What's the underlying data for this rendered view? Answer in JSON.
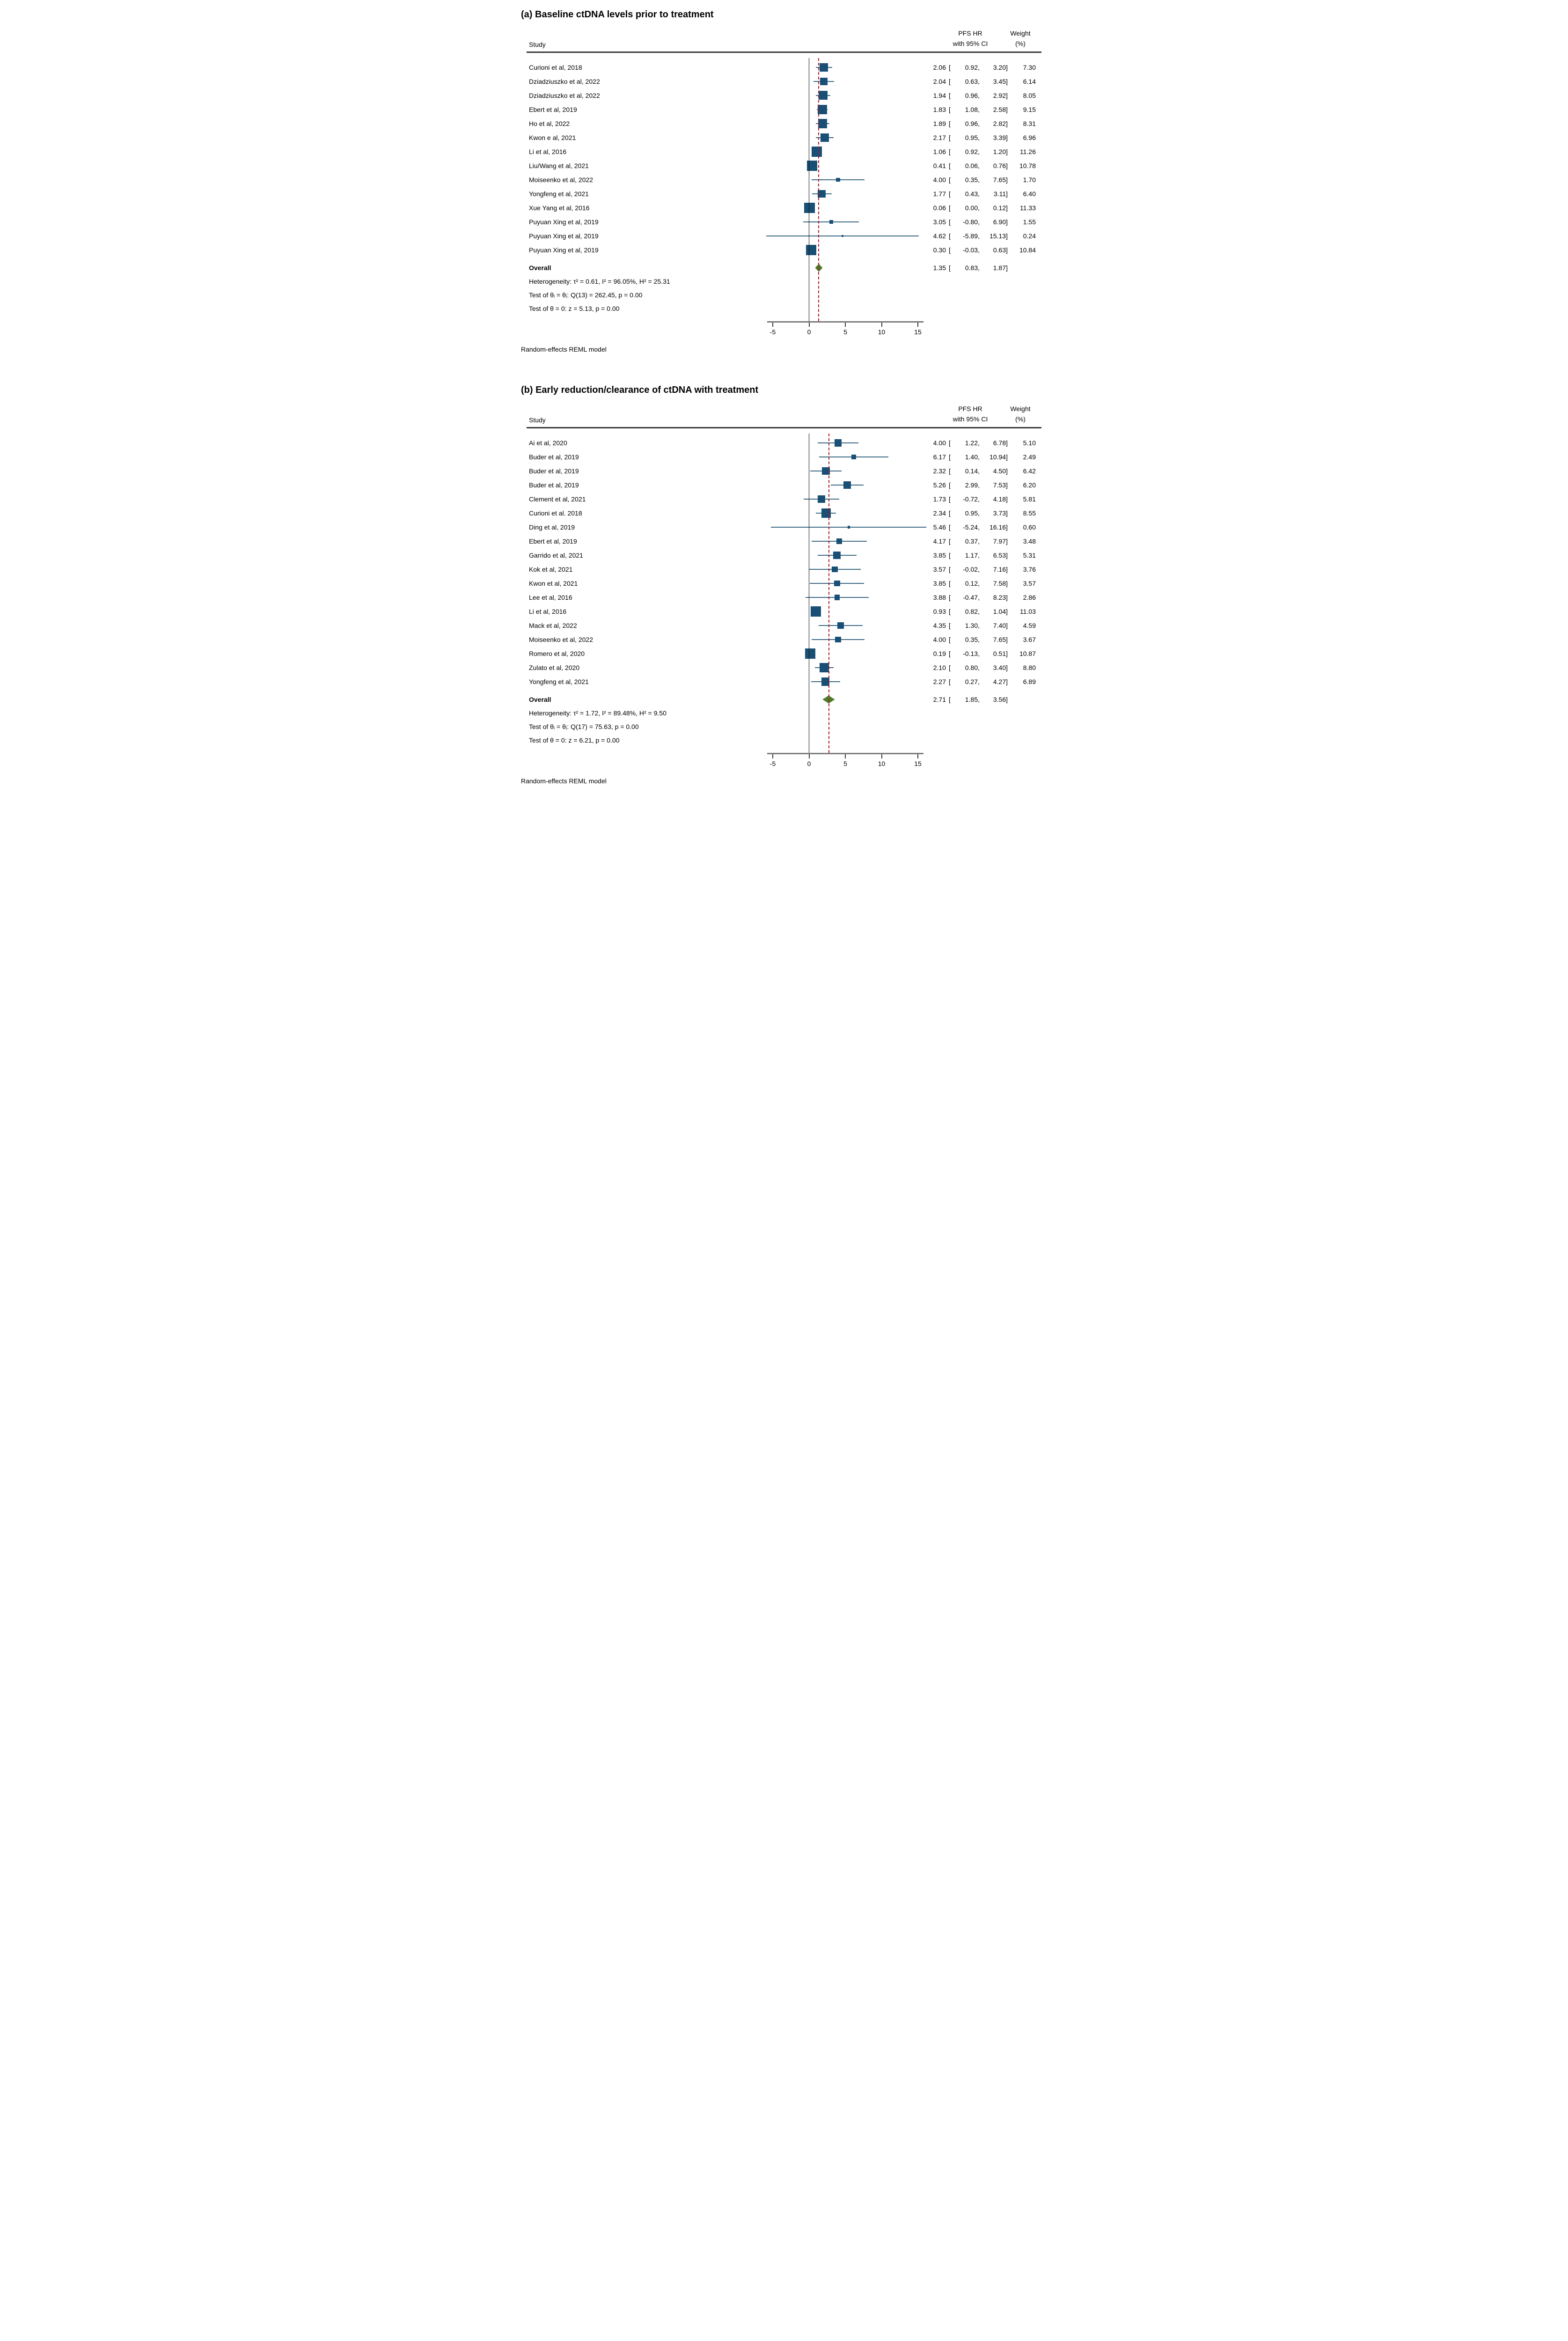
{
  "colors": {
    "marker": "#1a4f75",
    "whisker": "#3c6a85",
    "diamond": "#4e7d2c",
    "ref_line": "#a51b28",
    "zero_line": "#111111",
    "axis_line": "#7a7a7a",
    "tick": "#3c3c3c",
    "rule": "#3a3a3a"
  },
  "chart_data": [
    {
      "type": "forest",
      "id": "a",
      "title": "(a) Baseline ctDNA levels prior to treatment",
      "columns": {
        "study": "Study",
        "effect1": "PFS HR",
        "effect2": "with 95% CI",
        "weight1": "Weight",
        "weight2": "(%)"
      },
      "axis": {
        "min": -5,
        "max": 15,
        "ticks": [
          -5,
          0,
          5,
          10,
          15
        ],
        "zero_line": 0
      },
      "legend_position": "none",
      "grid": false,
      "studies": [
        {
          "label": "Curioni et al, 2018",
          "est": 2.06,
          "lo": 0.92,
          "hi": 3.2,
          "weight": 7.3
        },
        {
          "label": "Dziadziuszko et al, 2022",
          "est": 2.04,
          "lo": 0.63,
          "hi": 3.45,
          "weight": 6.14
        },
        {
          "label": "Dziadziuszko et al, 2022",
          "est": 1.94,
          "lo": 0.96,
          "hi": 2.92,
          "weight": 8.05
        },
        {
          "label": "Ebert et al, 2019",
          "est": 1.83,
          "lo": 1.08,
          "hi": 2.58,
          "weight": 9.15
        },
        {
          "label": "Ho et al, 2022",
          "est": 1.89,
          "lo": 0.96,
          "hi": 2.82,
          "weight": 8.31
        },
        {
          "label": "Kwon e al, 2021",
          "est": 2.17,
          "lo": 0.95,
          "hi": 3.39,
          "weight": 6.96
        },
        {
          "label": "Li et al, 2016",
          "est": 1.06,
          "lo": 0.92,
          "hi": 1.2,
          "weight": 11.26
        },
        {
          "label": "Liu/Wang et al, 2021",
          "est": 0.41,
          "lo": 0.06,
          "hi": 0.76,
          "weight": 10.78
        },
        {
          "label": "Moiseenko et al, 2022",
          "est": 4.0,
          "lo": 0.35,
          "hi": 7.65,
          "weight": 1.7
        },
        {
          "label": "Yongfeng et al, 2021",
          "est": 1.77,
          "lo": 0.43,
          "hi": 3.11,
          "weight": 6.4
        },
        {
          "label": "Xue Yang et al, 2016",
          "est": 0.06,
          "lo": 0.0,
          "hi": 0.12,
          "weight": 11.33
        },
        {
          "label": "Puyuan Xing et al, 2019",
          "est": 3.05,
          "lo": -0.8,
          "hi": 6.9,
          "weight": 1.55
        },
        {
          "label": "Puyuan Xing et al, 2019",
          "est": 4.62,
          "lo": -5.89,
          "hi": 15.13,
          "weight": 0.24
        },
        {
          "label": "Puyuan Xing et al, 2019",
          "est": 0.3,
          "lo": -0.03,
          "hi": 0.63,
          "weight": 10.84
        }
      ],
      "overall": {
        "label": "Overall",
        "est": 1.35,
        "lo": 0.83,
        "hi": 1.87
      },
      "stats": [
        "Heterogeneity: τ² = 0.61, I² = 96.05%, H² = 25.31",
        "Test of θᵢ = θⱼ: Q(13) = 262.45, p = 0.00",
        "Test of θ = 0: z = 5.13, p = 0.00"
      ],
      "note": "Random-effects REML model"
    },
    {
      "type": "forest",
      "id": "b",
      "title": "(b) Early reduction/clearance of ctDNA with treatment",
      "columns": {
        "study": "Study",
        "effect1": "PFS HR",
        "effect2": "with 95% CI",
        "weight1": "Weight",
        "weight2": "(%)"
      },
      "axis": {
        "min": -5,
        "max": 15,
        "ticks": [
          -5,
          0,
          5,
          10,
          15
        ],
        "zero_line": 0
      },
      "legend_position": "none",
      "grid": false,
      "studies": [
        {
          "label": "Ai et al, 2020",
          "est": 4.0,
          "lo": 1.22,
          "hi": 6.78,
          "weight": 5.1
        },
        {
          "label": "Buder et al, 2019",
          "est": 6.17,
          "lo": 1.4,
          "hi": 10.94,
          "weight": 2.49
        },
        {
          "label": "Buder et al, 2019",
          "est": 2.32,
          "lo": 0.14,
          "hi": 4.5,
          "weight": 6.42
        },
        {
          "label": "Buder et al, 2019",
          "est": 5.26,
          "lo": 2.99,
          "hi": 7.53,
          "weight": 6.2
        },
        {
          "label": "Clement et al, 2021",
          "est": 1.73,
          "lo": -0.72,
          "hi": 4.18,
          "weight": 5.81
        },
        {
          "label": "Curioni et al. 2018",
          "est": 2.34,
          "lo": 0.95,
          "hi": 3.73,
          "weight": 8.55
        },
        {
          "label": "Ding et al, 2019",
          "est": 5.46,
          "lo": -5.24,
          "hi": 16.16,
          "weight": 0.6
        },
        {
          "label": "Ebert et al, 2019",
          "est": 4.17,
          "lo": 0.37,
          "hi": 7.97,
          "weight": 3.48
        },
        {
          "label": "Garrido et al, 2021",
          "est": 3.85,
          "lo": 1.17,
          "hi": 6.53,
          "weight": 5.31
        },
        {
          "label": "Kok et al, 2021",
          "est": 3.57,
          "lo": -0.02,
          "hi": 7.16,
          "weight": 3.76
        },
        {
          "label": "Kwon et al, 2021",
          "est": 3.85,
          "lo": 0.12,
          "hi": 7.58,
          "weight": 3.57
        },
        {
          "label": "Lee et al, 2016",
          "est": 3.88,
          "lo": -0.47,
          "hi": 8.23,
          "weight": 2.86
        },
        {
          "label": "Li et al, 2016",
          "est": 0.93,
          "lo": 0.82,
          "hi": 1.04,
          "weight": 11.03
        },
        {
          "label": "Mack et al, 2022",
          "est": 4.35,
          "lo": 1.3,
          "hi": 7.4,
          "weight": 4.59
        },
        {
          "label": "Moiseenko et al, 2022",
          "est": 4.0,
          "lo": 0.35,
          "hi": 7.65,
          "weight": 3.67
        },
        {
          "label": "Romero et al, 2020",
          "est": 0.19,
          "lo": -0.13,
          "hi": 0.51,
          "weight": 10.87
        },
        {
          "label": "Zulato et al, 2020",
          "est": 2.1,
          "lo": 0.8,
          "hi": 3.4,
          "weight": 8.8
        },
        {
          "label": "Yongfeng et al, 2021",
          "est": 2.27,
          "lo": 0.27,
          "hi": 4.27,
          "weight": 6.89
        }
      ],
      "overall": {
        "label": "Overall",
        "est": 2.71,
        "lo": 1.85,
        "hi": 3.56
      },
      "stats": [
        "Heterogeneity: τ² = 1.72, I² = 89.48%, H² = 9.50",
        "Test of θᵢ = θⱼ: Q(17) = 75.63, p = 0.00",
        "Test of θ = 0: z = 6.21, p = 0.00"
      ],
      "note": "Random-effects REML model"
    }
  ]
}
